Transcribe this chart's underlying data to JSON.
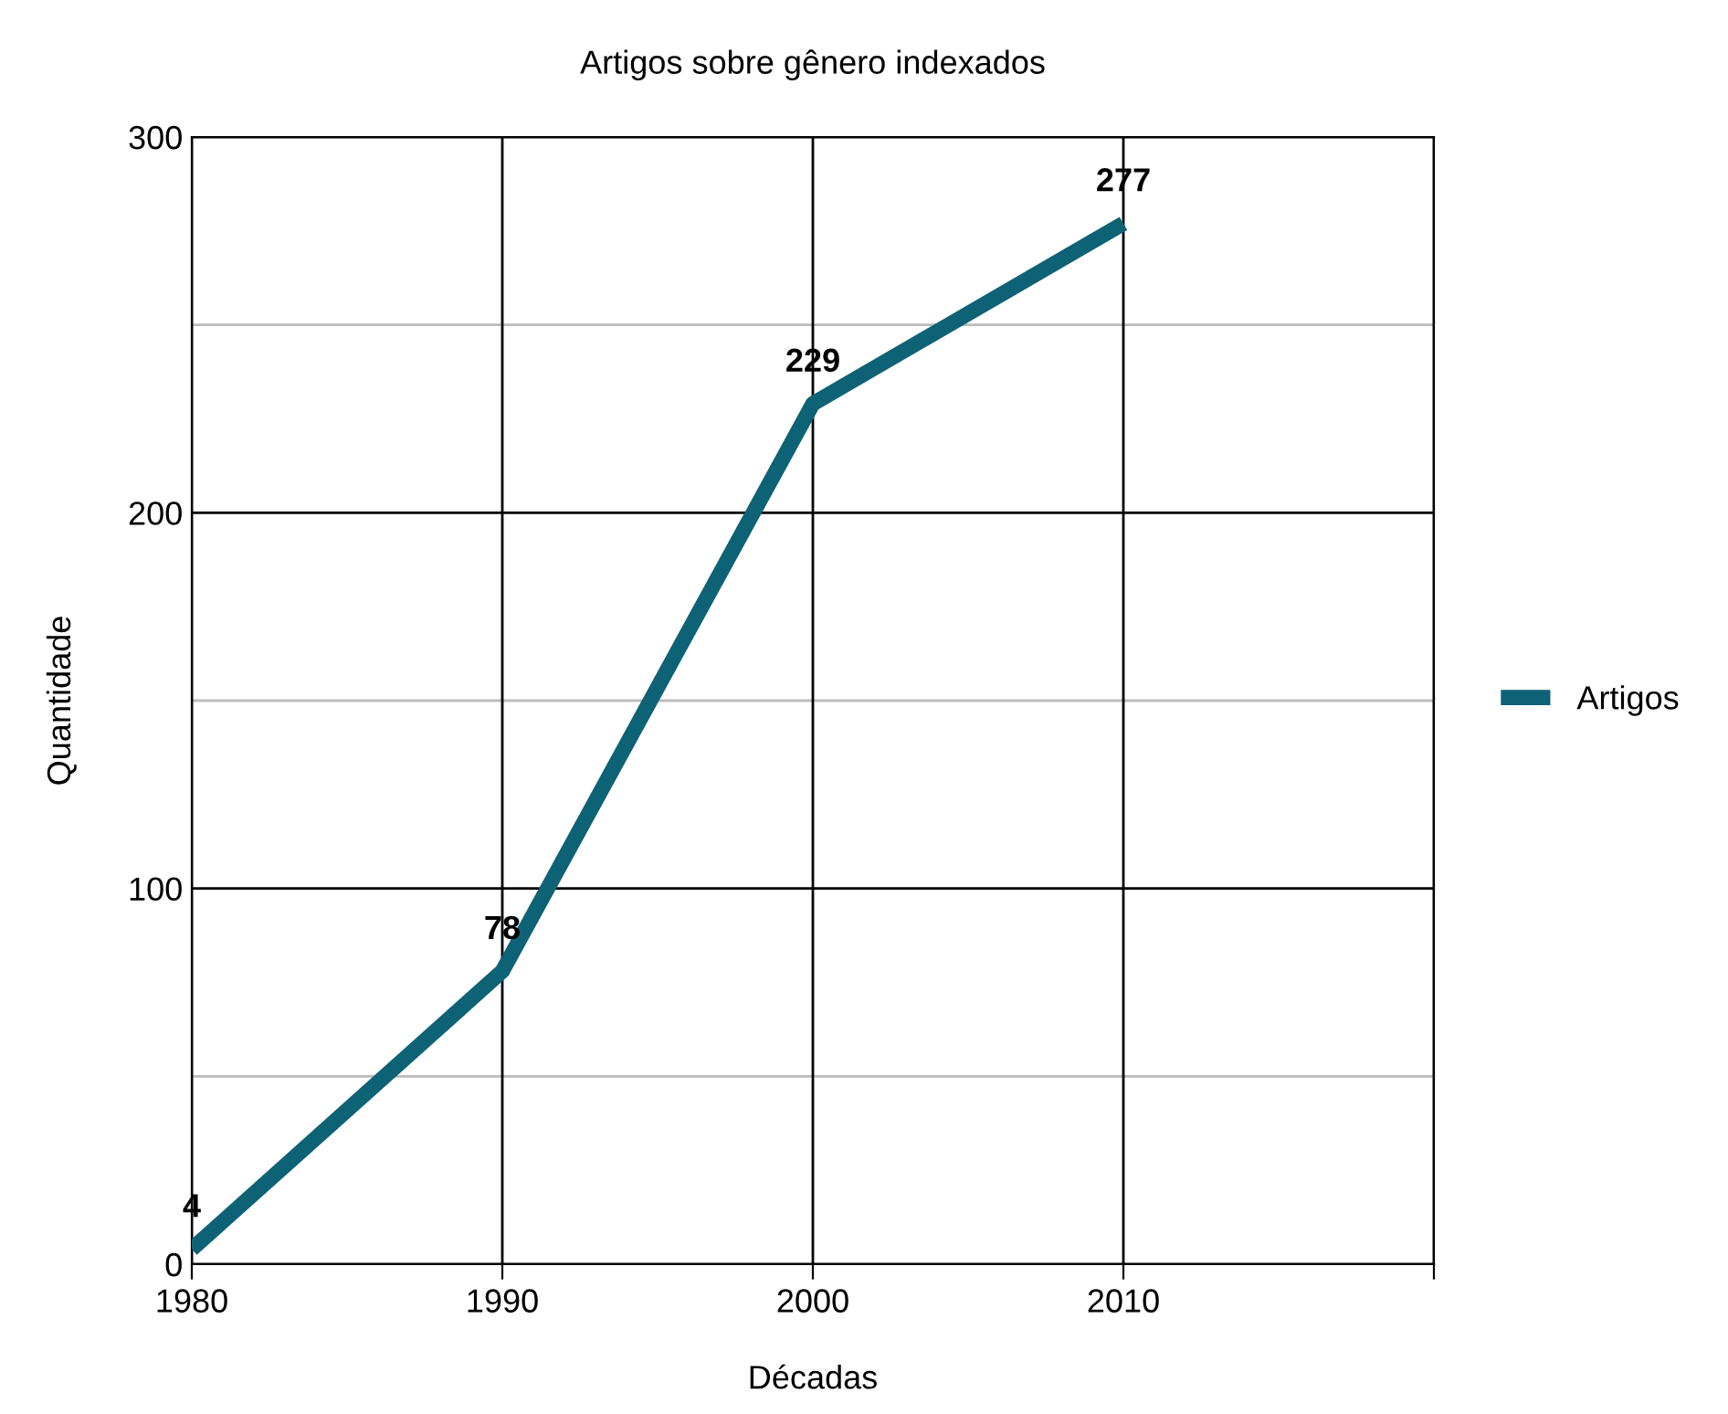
{
  "chart_data": {
    "type": "line",
    "title": "Artigos sobre gênero indexados",
    "xlabel": "Décadas",
    "ylabel": "Quantidade",
    "x": [
      1980,
      1990,
      2000,
      2010
    ],
    "series": [
      {
        "name": "Artigos",
        "color": "#0e6275",
        "values": [
          4,
          78,
          229,
          277
        ]
      }
    ],
    "xlim": [
      1980,
      2020
    ],
    "xticks": [
      1980,
      1990,
      2000,
      2010,
      {
        "value": 2020,
        "label": null
      }
    ],
    "ylim": [
      0,
      300
    ],
    "yticks": [
      0,
      {
        "value": 50,
        "label": null
      },
      100,
      {
        "value": 150,
        "label": null
      },
      200,
      {
        "value": 250,
        "label": null
      },
      300
    ],
    "grid": true,
    "legend": "right",
    "data_labels": true,
    "marker": "none",
    "line_style": "solid"
  }
}
